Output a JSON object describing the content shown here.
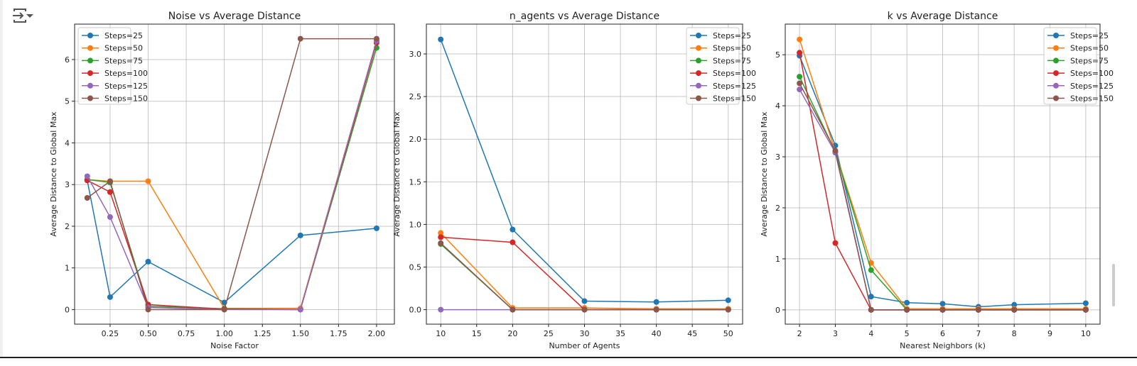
{
  "output_toggle_icon": "output-collapse-icon",
  "colors": [
    "#1f77b4",
    "#ff7f0e",
    "#2ca02c",
    "#d62728",
    "#9467bd",
    "#8c564b"
  ],
  "chart_data": [
    {
      "type": "line",
      "title": "Noise vs Average Distance",
      "xlabel": "Noise Factor",
      "ylabel": "Average Distance to Global Max",
      "xlim": [
        0.017,
        2.117
      ],
      "ylim": [
        -0.35,
        6.85
      ],
      "xticks": [
        0.25,
        0.5,
        0.75,
        1.0,
        1.25,
        1.5,
        1.75,
        2.0
      ],
      "xtick_labels": [
        "0.25",
        "0.50",
        "0.75",
        "1.00",
        "1.25",
        "1.50",
        "1.75",
        "2.00"
      ],
      "yticks": [
        0,
        1,
        2,
        3,
        4,
        5,
        6
      ],
      "ytick_labels": [
        "0",
        "1",
        "2",
        "3",
        "4",
        "5",
        "6"
      ],
      "grid": true,
      "legend": "upper-left",
      "x": [
        0.1,
        0.25,
        0.5,
        1.0,
        1.5,
        2.0
      ],
      "series": [
        {
          "name": "Steps=25",
          "values": [
            3.1,
            0.3,
            1.15,
            0.17,
            1.78,
            1.95
          ]
        },
        {
          "name": "Steps=50",
          "values": [
            3.12,
            3.08,
            3.08,
            0.03,
            0.03,
            6.45
          ]
        },
        {
          "name": "Steps=75",
          "values": [
            3.12,
            3.05,
            0.08,
            0.02,
            0.0,
            6.28
          ]
        },
        {
          "name": "Steps=100",
          "values": [
            3.1,
            2.82,
            0.12,
            0.01,
            0.0,
            6.4
          ]
        },
        {
          "name": "Steps=125",
          "values": [
            3.2,
            2.22,
            0.05,
            0.0,
            0.0,
            6.45
          ]
        },
        {
          "name": "Steps=150",
          "values": [
            2.68,
            3.08,
            0.0,
            0.0,
            6.5,
            6.5
          ]
        }
      ]
    },
    {
      "type": "line",
      "title": "n_agents vs Average Distance",
      "xlabel": "Number of Agents",
      "ylabel": "Average Distance to Global Max",
      "xlim": [
        8,
        52
      ],
      "ylim": [
        -0.17,
        3.35
      ],
      "xticks": [
        10,
        15,
        20,
        25,
        30,
        35,
        40,
        45,
        50
      ],
      "xtick_labels": [
        "10",
        "15",
        "20",
        "25",
        "30",
        "35",
        "40",
        "45",
        "50"
      ],
      "yticks": [
        0,
        0.5,
        1,
        1.5,
        2,
        2.5,
        3
      ],
      "ytick_labels": [
        "0.0",
        "0.5",
        "1.0",
        "1.5",
        "2.0",
        "2.5",
        "3.0"
      ],
      "grid": true,
      "legend": "upper-right",
      "x": [
        10,
        20,
        30,
        40,
        50
      ],
      "series": [
        {
          "name": "Steps=25",
          "values": [
            3.17,
            0.94,
            0.1,
            0.09,
            0.11
          ]
        },
        {
          "name": "Steps=50",
          "values": [
            0.9,
            0.02,
            0.02,
            0.01,
            0.01
          ]
        },
        {
          "name": "Steps=75",
          "values": [
            0.77,
            0.0,
            0.0,
            0.0,
            0.0
          ]
        },
        {
          "name": "Steps=100",
          "values": [
            0.85,
            0.79,
            0.0,
            0.0,
            0.0
          ]
        },
        {
          "name": "Steps=125",
          "values": [
            0.0,
            0.0,
            0.0,
            0.0,
            0.0
          ]
        },
        {
          "name": "Steps=150",
          "values": [
            0.78,
            0.0,
            0.0,
            0.0,
            0.0
          ]
        }
      ]
    },
    {
      "type": "line",
      "title": "k vs Average Distance",
      "xlabel": "Nearest Neighbors (k)",
      "ylabel": "Average Distance to Global Max",
      "xlim": [
        1.6,
        10.4
      ],
      "ylim": [
        -0.28,
        5.6
      ],
      "xticks": [
        2,
        3,
        4,
        5,
        6,
        7,
        8,
        9,
        10
      ],
      "xtick_labels": [
        "2",
        "3",
        "4",
        "5",
        "6",
        "7",
        "8",
        "9",
        "10"
      ],
      "yticks": [
        0,
        1,
        2,
        3,
        4,
        5
      ],
      "ytick_labels": [
        "0",
        "1",
        "2",
        "3",
        "4",
        "5"
      ],
      "grid": true,
      "legend": "upper-right",
      "x": [
        2,
        3,
        4,
        5,
        6,
        7,
        8,
        10
      ],
      "series": [
        {
          "name": "Steps=25",
          "values": [
            4.98,
            3.22,
            0.26,
            0.14,
            0.12,
            0.06,
            0.1,
            0.13
          ]
        },
        {
          "name": "Steps=50",
          "values": [
            5.3,
            3.1,
            0.92,
            0.02,
            0.02,
            0.02,
            0.02,
            0.02
          ]
        },
        {
          "name": "Steps=75",
          "values": [
            4.57,
            3.1,
            0.78,
            0.0,
            0.0,
            0.0,
            0.0,
            0.0
          ]
        },
        {
          "name": "Steps=100",
          "values": [
            5.04,
            1.31,
            0.0,
            0.0,
            0.0,
            0.0,
            0.0,
            0.0
          ]
        },
        {
          "name": "Steps=125",
          "values": [
            4.32,
            3.08,
            0.0,
            0.0,
            0.0,
            0.0,
            0.0,
            0.0
          ]
        },
        {
          "name": "Steps=150",
          "values": [
            4.44,
            3.12,
            0.0,
            0.0,
            0.0,
            0.0,
            0.0,
            0.0
          ]
        }
      ]
    }
  ]
}
